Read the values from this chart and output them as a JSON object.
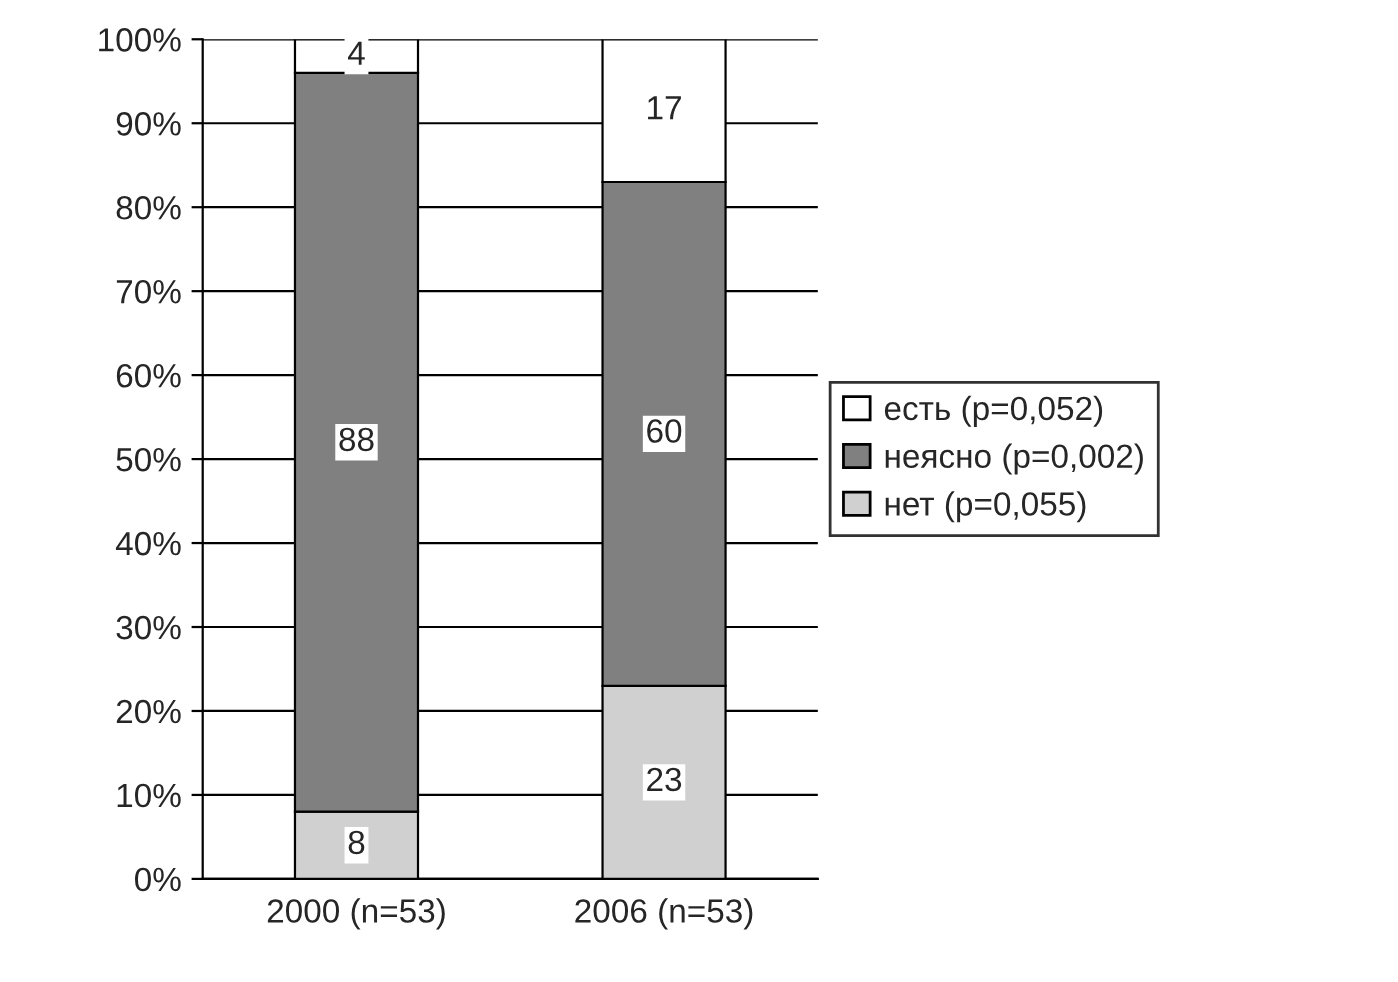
{
  "chart_data": {
    "type": "bar",
    "stacked": true,
    "categories": [
      "2000 (n=53)",
      "2006 (n=53)"
    ],
    "series": [
      {
        "name": "нет (p=0,055)",
        "color": "#d0d0d0",
        "values": [
          8,
          23
        ]
      },
      {
        "name": "неясно (p=0,002)",
        "color": "#808080",
        "values": [
          88,
          60
        ]
      },
      {
        "name": "есть (p=0,052)",
        "color": "#ffffff",
        "values": [
          4,
          17
        ]
      }
    ],
    "ylim": [
      0,
      100
    ],
    "yticks": [
      {
        "value": 0,
        "label": "0%"
      },
      {
        "value": 10,
        "label": "10%"
      },
      {
        "value": 20,
        "label": "20%"
      },
      {
        "value": 30,
        "label": "30%"
      },
      {
        "value": 40,
        "label": "40%"
      },
      {
        "value": 50,
        "label": "50%"
      },
      {
        "value": 60,
        "label": "60%"
      },
      {
        "value": 70,
        "label": "70%"
      },
      {
        "value": 80,
        "label": "80%"
      },
      {
        "value": 90,
        "label": "90%"
      },
      {
        "value": 100,
        "label": "100%"
      }
    ],
    "grid": "y",
    "legend": "right",
    "data_labels": true
  }
}
